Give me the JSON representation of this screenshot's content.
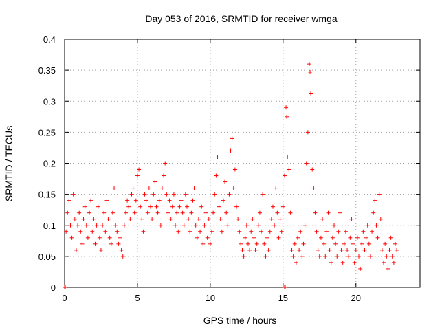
{
  "chart_data": {
    "type": "scatter",
    "title": "Day 053 of 2016, SRMTID for receiver wmga",
    "xlabel": "GPS time / hours",
    "ylabel": "SRMTID / TECUs",
    "xlim": [
      0,
      24.4
    ],
    "ylim": [
      0,
      0.4
    ],
    "grid": true,
    "marker": "+",
    "marker_color": "#ff0000",
    "x_ticks": [
      {
        "value": 0,
        "label": "0"
      },
      {
        "value": 5,
        "label": "5"
      },
      {
        "value": 10,
        "label": "10"
      },
      {
        "value": 15,
        "label": "15"
      },
      {
        "value": 20,
        "label": "20"
      }
    ],
    "y_ticks": [
      {
        "value": 0,
        "label": "0"
      },
      {
        "value": 0.05,
        "label": "0.05"
      },
      {
        "value": 0.1,
        "label": "0.1"
      },
      {
        "value": 0.15,
        "label": "0.15"
      },
      {
        "value": 0.2,
        "label": "0.2"
      },
      {
        "value": 0.25,
        "label": "0.25"
      },
      {
        "value": 0.3,
        "label": "0.3"
      },
      {
        "value": 0.35,
        "label": "0.35"
      },
      {
        "value": 0.4,
        "label": "0.4"
      }
    ],
    "series": [
      {
        "name": "SRMTID",
        "color": "#ff0000",
        "points": [
          [
            0.0,
            0.0
          ],
          [
            0.05,
            0.0
          ],
          [
            15.1,
            0.0
          ],
          [
            15.15,
            0.0
          ],
          [
            0.1,
            0.09
          ],
          [
            0.2,
            0.12
          ],
          [
            0.3,
            0.14
          ],
          [
            0.4,
            0.1
          ],
          [
            0.5,
            0.08
          ],
          [
            0.6,
            0.15
          ],
          [
            0.7,
            0.11
          ],
          [
            0.8,
            0.06
          ],
          [
            0.9,
            0.1
          ],
          [
            1.0,
            0.12
          ],
          [
            1.1,
            0.09
          ],
          [
            1.2,
            0.07
          ],
          [
            1.3,
            0.11
          ],
          [
            1.4,
            0.13
          ],
          [
            1.5,
            0.1
          ],
          [
            1.6,
            0.08
          ],
          [
            1.7,
            0.12
          ],
          [
            1.8,
            0.14
          ],
          [
            1.9,
            0.09
          ],
          [
            2.0,
            0.11
          ],
          [
            2.1,
            0.07
          ],
          [
            2.2,
            0.1
          ],
          [
            2.3,
            0.13
          ],
          [
            2.4,
            0.08
          ],
          [
            2.5,
            0.06
          ],
          [
            2.6,
            0.1
          ],
          [
            2.7,
            0.12
          ],
          [
            2.8,
            0.09
          ],
          [
            2.9,
            0.14
          ],
          [
            3.0,
            0.11
          ],
          [
            3.1,
            0.08
          ],
          [
            3.2,
            0.07
          ],
          [
            3.3,
            0.12
          ],
          [
            3.4,
            0.16
          ],
          [
            3.5,
            0.1
          ],
          [
            3.6,
            0.09
          ],
          [
            3.7,
            0.07
          ],
          [
            3.8,
            0.08
          ],
          [
            3.9,
            0.06
          ],
          [
            4.0,
            0.05
          ],
          [
            4.1,
            0.1
          ],
          [
            4.2,
            0.12
          ],
          [
            4.3,
            0.14
          ],
          [
            4.4,
            0.13
          ],
          [
            4.5,
            0.11
          ],
          [
            4.6,
            0.15
          ],
          [
            4.7,
            0.16
          ],
          [
            4.8,
            0.12
          ],
          [
            4.9,
            0.14
          ],
          [
            5.0,
            0.18
          ],
          [
            5.1,
            0.19
          ],
          [
            5.2,
            0.13
          ],
          [
            5.3,
            0.11
          ],
          [
            5.4,
            0.09
          ],
          [
            5.5,
            0.15
          ],
          [
            5.6,
            0.14
          ],
          [
            5.7,
            0.12
          ],
          [
            5.8,
            0.16
          ],
          [
            5.9,
            0.13
          ],
          [
            6.0,
            0.11
          ],
          [
            6.1,
            0.15
          ],
          [
            6.2,
            0.17
          ],
          [
            6.3,
            0.13
          ],
          [
            6.4,
            0.12
          ],
          [
            6.5,
            0.14
          ],
          [
            6.6,
            0.1
          ],
          [
            6.7,
            0.16
          ],
          [
            6.8,
            0.18
          ],
          [
            6.9,
            0.2
          ],
          [
            7.0,
            0.15
          ],
          [
            7.1,
            0.12
          ],
          [
            7.2,
            0.14
          ],
          [
            7.3,
            0.11
          ],
          [
            7.4,
            0.13
          ],
          [
            7.5,
            0.15
          ],
          [
            7.6,
            0.1
          ],
          [
            7.7,
            0.12
          ],
          [
            7.8,
            0.09
          ],
          [
            7.9,
            0.13
          ],
          [
            8.0,
            0.14
          ],
          [
            8.1,
            0.12
          ],
          [
            8.2,
            0.1
          ],
          [
            8.3,
            0.15
          ],
          [
            8.4,
            0.13
          ],
          [
            8.5,
            0.11
          ],
          [
            8.6,
            0.09
          ],
          [
            8.7,
            0.12
          ],
          [
            8.8,
            0.14
          ],
          [
            8.9,
            0.16
          ],
          [
            9.0,
            0.1
          ],
          [
            9.1,
            0.08
          ],
          [
            9.2,
            0.11
          ],
          [
            9.3,
            0.09
          ],
          [
            9.4,
            0.13
          ],
          [
            9.5,
            0.07
          ],
          [
            9.6,
            0.1
          ],
          [
            9.7,
            0.12
          ],
          [
            9.8,
            0.08
          ],
          [
            9.9,
            0.11
          ],
          [
            10.0,
            0.07
          ],
          [
            10.1,
            0.09
          ],
          [
            10.2,
            0.12
          ],
          [
            10.3,
            0.15
          ],
          [
            10.4,
            0.18
          ],
          [
            10.5,
            0.21
          ],
          [
            10.6,
            0.13
          ],
          [
            10.7,
            0.11
          ],
          [
            10.8,
            0.09
          ],
          [
            10.9,
            0.14
          ],
          [
            11.0,
            0.17
          ],
          [
            11.1,
            0.12
          ],
          [
            11.2,
            0.1
          ],
          [
            11.3,
            0.15
          ],
          [
            11.4,
            0.22
          ],
          [
            11.5,
            0.24
          ],
          [
            11.6,
            0.16
          ],
          [
            11.7,
            0.19
          ],
          [
            11.8,
            0.13
          ],
          [
            11.9,
            0.11
          ],
          [
            12.0,
            0.09
          ],
          [
            12.1,
            0.07
          ],
          [
            12.2,
            0.06
          ],
          [
            12.3,
            0.05
          ],
          [
            12.4,
            0.08
          ],
          [
            12.5,
            0.1
          ],
          [
            12.6,
            0.07
          ],
          [
            12.7,
            0.06
          ],
          [
            12.8,
            0.09
          ],
          [
            12.9,
            0.11
          ],
          [
            13.0,
            0.08
          ],
          [
            13.1,
            0.06
          ],
          [
            13.2,
            0.07
          ],
          [
            13.3,
            0.1
          ],
          [
            13.4,
            0.12
          ],
          [
            13.5,
            0.09
          ],
          [
            13.6,
            0.15
          ],
          [
            13.7,
            0.07
          ],
          [
            13.8,
            0.05
          ],
          [
            13.9,
            0.08
          ],
          [
            14.0,
            0.06
          ],
          [
            14.1,
            0.09
          ],
          [
            14.2,
            0.11
          ],
          [
            14.3,
            0.13
          ],
          [
            14.4,
            0.1
          ],
          [
            14.5,
            0.16
          ],
          [
            14.6,
            0.12
          ],
          [
            14.7,
            0.08
          ],
          [
            14.8,
            0.11
          ],
          [
            14.9,
            0.09
          ],
          [
            15.0,
            0.13
          ],
          [
            15.1,
            0.18
          ],
          [
            15.2,
            0.29
          ],
          [
            15.25,
            0.275
          ],
          [
            15.3,
            0.21
          ],
          [
            15.4,
            0.19
          ],
          [
            15.5,
            0.12
          ],
          [
            15.6,
            0.06
          ],
          [
            15.7,
            0.05
          ],
          [
            15.8,
            0.07
          ],
          [
            15.9,
            0.04
          ],
          [
            16.0,
            0.08
          ],
          [
            16.1,
            0.06
          ],
          [
            16.2,
            0.09
          ],
          [
            16.3,
            0.05
          ],
          [
            16.4,
            0.07
          ],
          [
            16.5,
            0.1
          ],
          [
            16.6,
            0.2
          ],
          [
            16.7,
            0.25
          ],
          [
            16.8,
            0.36
          ],
          [
            16.85,
            0.347
          ],
          [
            16.9,
            0.313
          ],
          [
            17.0,
            0.19
          ],
          [
            17.1,
            0.16
          ],
          [
            17.2,
            0.12
          ],
          [
            17.3,
            0.09
          ],
          [
            17.4,
            0.06
          ],
          [
            17.5,
            0.05
          ],
          [
            17.6,
            0.08
          ],
          [
            17.7,
            0.11
          ],
          [
            17.8,
            0.07
          ],
          [
            17.9,
            0.05
          ],
          [
            18.0,
            0.09
          ],
          [
            18.1,
            0.12
          ],
          [
            18.2,
            0.06
          ],
          [
            18.3,
            0.04
          ],
          [
            18.4,
            0.08
          ],
          [
            18.5,
            0.1
          ],
          [
            18.6,
            0.07
          ],
          [
            18.7,
            0.05
          ],
          [
            18.8,
            0.09
          ],
          [
            18.9,
            0.12
          ],
          [
            19.0,
            0.06
          ],
          [
            19.1,
            0.04
          ],
          [
            19.2,
            0.07
          ],
          [
            19.3,
            0.09
          ],
          [
            19.4,
            0.06
          ],
          [
            19.5,
            0.05
          ],
          [
            19.6,
            0.08
          ],
          [
            19.7,
            0.11
          ],
          [
            19.8,
            0.07
          ],
          [
            19.9,
            0.04
          ],
          [
            20.0,
            0.06
          ],
          [
            20.1,
            0.08
          ],
          [
            20.2,
            0.05
          ],
          [
            20.3,
            0.03
          ],
          [
            20.4,
            0.07
          ],
          [
            20.5,
            0.09
          ],
          [
            20.6,
            0.06
          ],
          [
            20.7,
            0.08
          ],
          [
            20.8,
            0.1
          ],
          [
            20.9,
            0.07
          ],
          [
            21.0,
            0.05
          ],
          [
            21.1,
            0.09
          ],
          [
            21.2,
            0.12
          ],
          [
            21.3,
            0.14
          ],
          [
            21.4,
            0.1
          ],
          [
            21.5,
            0.08
          ],
          [
            21.6,
            0.15
          ],
          [
            21.7,
            0.11
          ],
          [
            21.8,
            0.06
          ],
          [
            21.9,
            0.04
          ],
          [
            22.0,
            0.07
          ],
          [
            22.1,
            0.05
          ],
          [
            22.2,
            0.03
          ],
          [
            22.3,
            0.06
          ],
          [
            22.4,
            0.08
          ],
          [
            22.5,
            0.05
          ],
          [
            22.6,
            0.04
          ],
          [
            22.7,
            0.07
          ],
          [
            22.8,
            0.06
          ]
        ]
      }
    ]
  }
}
